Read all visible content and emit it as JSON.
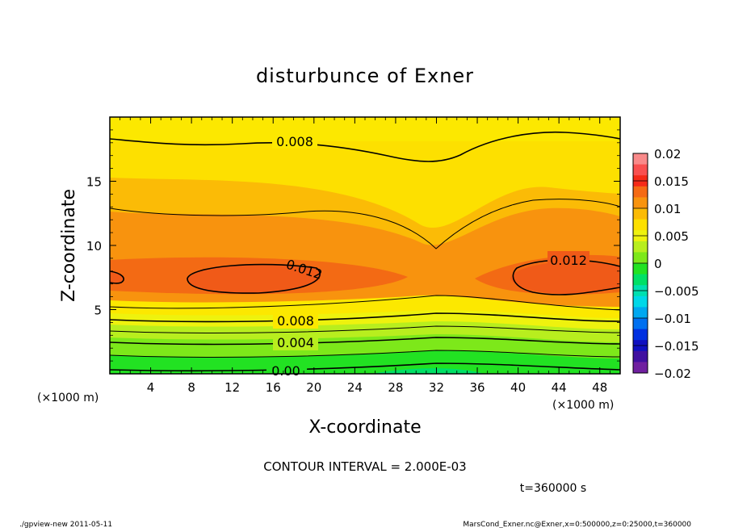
{
  "chart_data": {
    "type": "heatmap",
    "title": "disturbunce of Exner",
    "xlabel": "X-coordinate",
    "ylabel": "Z-coordinate",
    "x_unit_left": "(×1000 m)",
    "x_unit_right": "(×1000 m)",
    "xlim": [
      0,
      50
    ],
    "ylim": [
      0,
      20
    ],
    "x_ticks": [
      "4",
      "8",
      "12",
      "16",
      "20",
      "24",
      "28",
      "32",
      "36",
      "40",
      "44",
      "48"
    ],
    "y_ticks": [
      "5",
      "10",
      "15"
    ],
    "colorbar": {
      "ticks": [
        "0.02",
        "0.015",
        "0.01",
        "0.005",
        "0",
        "−0.005",
        "−0.01",
        "−0.015",
        "−0.02"
      ],
      "range": [
        -0.02,
        0.02
      ]
    },
    "contour_labels": [
      "0.008",
      "0.012",
      "0.012",
      "0.008",
      "0.004",
      "0.00"
    ],
    "contour_interval_text": "CONTOUR INTERVAL = 2.000E-03",
    "time_text": "t=360000 s",
    "footer_left": "./gpview-new  2011-05-11",
    "footer_right": "MarsCond_Exner.nc@Exner,x=0:500000,z=0:25000,t=360000",
    "colors": {
      "c_0": "#22e222",
      "c_002": "#7de81a",
      "c_004": "#b8ee1e",
      "c_006": "#eef20e",
      "c_008": "#fde000",
      "c_010": "#fbbb06",
      "c_012": "#f8930e",
      "c_014": "#f36a14"
    }
  }
}
